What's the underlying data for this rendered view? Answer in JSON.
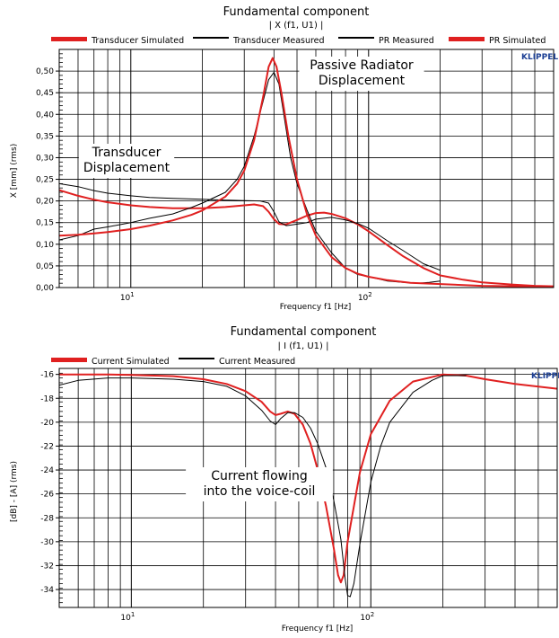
{
  "brand": "KLIPPEL",
  "chart_data": [
    {
      "type": "line",
      "title": "Fundamental component",
      "subtitle": "| X (f1, U1) |",
      "xlabel": "Frequency f1  [Hz]",
      "ylabel": "X  [mm]  (rms)",
      "xscale": "log",
      "xlim": [
        5,
        600
      ],
      "ylim": [
        0,
        0.55
      ],
      "xticks": [
        {
          "v": 10,
          "base": "10",
          "exp": "1"
        },
        {
          "v": 100,
          "base": "10",
          "exp": "2"
        }
      ],
      "yticks": [
        "0,00",
        "0,05",
        "0,10",
        "0,15",
        "0,20",
        "0,25",
        "0,30",
        "0,35",
        "0,40",
        "0,45",
        "0,50"
      ],
      "grid": true,
      "legend_position": "top",
      "legend": [
        {
          "label": "Transducer Simulated",
          "color": "#e02020"
        },
        {
          "label": "Transducer Measured",
          "color": "#000000"
        },
        {
          "label": "PR Measured",
          "color": "#000000"
        },
        {
          "label": "PR Simulated",
          "color": "#e02020"
        }
      ],
      "annotations": [
        {
          "lines": [
            "Passive Radiator",
            "Displacement"
          ],
          "x": 60,
          "y": 0.475
        },
        {
          "lines": [
            "Transducer",
            "Displacement"
          ],
          "x": 9.5,
          "y": 0.275
        }
      ],
      "series": [
        {
          "name": "Transducer Simulated",
          "color": "#e02020",
          "width": 2,
          "points": [
            [
              5,
              0.225
            ],
            [
              6,
              0.212
            ],
            [
              7,
              0.203
            ],
            [
              8,
              0.197
            ],
            [
              10,
              0.19
            ],
            [
              12,
              0.186
            ],
            [
              15,
              0.183
            ],
            [
              20,
              0.183
            ],
            [
              25,
              0.186
            ],
            [
              30,
              0.19
            ],
            [
              33,
              0.192
            ],
            [
              36,
              0.188
            ],
            [
              38,
              0.175
            ],
            [
              40,
              0.158
            ],
            [
              42,
              0.147
            ],
            [
              45,
              0.146
            ],
            [
              50,
              0.156
            ],
            [
              55,
              0.166
            ],
            [
              60,
              0.172
            ],
            [
              65,
              0.173
            ],
            [
              70,
              0.17
            ],
            [
              80,
              0.16
            ],
            [
              90,
              0.146
            ],
            [
              100,
              0.13
            ],
            [
              120,
              0.098
            ],
            [
              140,
              0.072
            ],
            [
              170,
              0.045
            ],
            [
              200,
              0.028
            ],
            [
              250,
              0.018
            ],
            [
              300,
              0.012
            ],
            [
              400,
              0.007
            ],
            [
              500,
              0.004
            ],
            [
              600,
              0.003
            ]
          ]
        },
        {
          "name": "Transducer Measured",
          "color": "#000000",
          "width": 1,
          "points": [
            [
              5,
              0.24
            ],
            [
              6,
              0.233
            ],
            [
              7,
              0.224
            ],
            [
              8,
              0.218
            ],
            [
              10,
              0.212
            ],
            [
              12,
              0.208
            ],
            [
              15,
              0.206
            ],
            [
              20,
              0.204
            ],
            [
              25,
              0.202
            ],
            [
              30,
              0.201
            ],
            [
              35,
              0.2
            ],
            [
              38,
              0.195
            ],
            [
              40,
              0.175
            ],
            [
              42,
              0.152
            ],
            [
              45,
              0.143
            ],
            [
              48,
              0.145
            ],
            [
              52,
              0.148
            ],
            [
              55,
              0.15
            ],
            [
              60,
              0.158
            ],
            [
              70,
              0.162
            ],
            [
              80,
              0.156
            ],
            [
              90,
              0.148
            ],
            [
              100,
              0.137
            ],
            [
              120,
              0.108
            ],
            [
              140,
              0.085
            ],
            [
              170,
              0.055
            ],
            [
              200,
              0.04
            ]
          ]
        },
        {
          "name": "PR Measured",
          "color": "#000000",
          "width": 1,
          "points": [
            [
              5,
              0.11
            ],
            [
              6,
              0.12
            ],
            [
              7,
              0.135
            ],
            [
              8,
              0.14
            ],
            [
              10,
              0.15
            ],
            [
              12,
              0.16
            ],
            [
              15,
              0.17
            ],
            [
              18,
              0.185
            ],
            [
              20,
              0.195
            ],
            [
              25,
              0.22
            ],
            [
              28,
              0.25
            ],
            [
              30,
              0.28
            ],
            [
              33,
              0.35
            ],
            [
              36,
              0.43
            ],
            [
              38,
              0.48
            ],
            [
              40,
              0.497
            ],
            [
              42,
              0.47
            ],
            [
              44,
              0.4
            ],
            [
              47,
              0.3
            ],
            [
              50,
              0.24
            ],
            [
              55,
              0.18
            ],
            [
              60,
              0.13
            ],
            [
              70,
              0.08
            ],
            [
              80,
              0.045
            ],
            [
              90,
              0.03
            ],
            [
              100,
              0.025
            ],
            [
              110,
              0.02
            ],
            [
              120,
              0.015
            ],
            [
              140,
              0.012
            ],
            [
              160,
              0.01
            ],
            [
              180,
              0.012
            ],
            [
              200,
              0.015
            ]
          ]
        },
        {
          "name": "PR Simulated",
          "color": "#e02020",
          "width": 2,
          "points": [
            [
              5,
              0.12
            ],
            [
              6,
              0.122
            ],
            [
              7,
              0.125
            ],
            [
              8,
              0.128
            ],
            [
              10,
              0.135
            ],
            [
              12,
              0.143
            ],
            [
              15,
              0.155
            ],
            [
              18,
              0.168
            ],
            [
              20,
              0.178
            ],
            [
              25,
              0.21
            ],
            [
              28,
              0.24
            ],
            [
              30,
              0.27
            ],
            [
              33,
              0.34
            ],
            [
              36,
              0.44
            ],
            [
              38,
              0.51
            ],
            [
              39.5,
              0.53
            ],
            [
              41,
              0.51
            ],
            [
              43,
              0.45
            ],
            [
              46,
              0.35
            ],
            [
              50,
              0.25
            ],
            [
              55,
              0.17
            ],
            [
              60,
              0.12
            ],
            [
              70,
              0.07
            ],
            [
              80,
              0.045
            ],
            [
              90,
              0.032
            ],
            [
              100,
              0.025
            ],
            [
              120,
              0.017
            ],
            [
              150,
              0.011
            ],
            [
              200,
              0.008
            ],
            [
              300,
              0.004
            ],
            [
              600,
              0.002
            ]
          ]
        }
      ]
    },
    {
      "type": "line",
      "title": "Fundamental component",
      "subtitle": "| I (f1, U1) |",
      "xlabel": "Frequency f1  [Hz]",
      "ylabel": "[dB] - [A]  (rms)",
      "xscale": "log",
      "xlim": [
        5,
        600
      ],
      "ylim": [
        -35.5,
        -15.5
      ],
      "xticks": [
        {
          "v": 10,
          "base": "10",
          "exp": "1"
        },
        {
          "v": 100,
          "base": "10",
          "exp": "2"
        }
      ],
      "yticks": [
        "-16",
        "-18",
        "-20",
        "-22",
        "-24",
        "-26",
        "-28",
        "-30",
        "-32",
        "-34"
      ],
      "grid": true,
      "legend_position": "top",
      "legend": [
        {
          "label": "Current Simulated",
          "color": "#e02020"
        },
        {
          "label": "Current Measured",
          "color": "#000000"
        }
      ],
      "annotations": [
        {
          "lines": [
            "Current flowing",
            "into the voice-coil"
          ],
          "x": 24,
          "y": -25
        }
      ],
      "series": [
        {
          "name": "Current Simulated",
          "color": "#e02020",
          "width": 2,
          "points": [
            [
              5,
              -16.0
            ],
            [
              8,
              -16.0
            ],
            [
              10,
              -16.05
            ],
            [
              15,
              -16.15
            ],
            [
              20,
              -16.4
            ],
            [
              25,
              -16.8
            ],
            [
              30,
              -17.4
            ],
            [
              35,
              -18.3
            ],
            [
              38,
              -19.1
            ],
            [
              40,
              -19.4
            ],
            [
              42,
              -19.3
            ],
            [
              45,
              -19.1
            ],
            [
              48,
              -19.3
            ],
            [
              52,
              -20.2
            ],
            [
              56,
              -21.8
            ],
            [
              60,
              -24.0
            ],
            [
              65,
              -27.0
            ],
            [
              70,
              -30.5
            ],
            [
              73,
              -32.8
            ],
            [
              75,
              -33.4
            ],
            [
              77,
              -32.8
            ],
            [
              80,
              -30.0
            ],
            [
              90,
              -24.2
            ],
            [
              100,
              -21.0
            ],
            [
              120,
              -18.2
            ],
            [
              150,
              -16.6
            ],
            [
              200,
              -16.0
            ],
            [
              250,
              -16.1
            ],
            [
              300,
              -16.4
            ],
            [
              400,
              -16.8
            ],
            [
              600,
              -17.2
            ]
          ]
        },
        {
          "name": "Current Measured",
          "color": "#000000",
          "width": 1,
          "points": [
            [
              5,
              -16.9
            ],
            [
              6,
              -16.5
            ],
            [
              8,
              -16.3
            ],
            [
              10,
              -16.3
            ],
            [
              15,
              -16.4
            ],
            [
              20,
              -16.6
            ],
            [
              25,
              -17.0
            ],
            [
              30,
              -17.8
            ],
            [
              35,
              -19.0
            ],
            [
              38,
              -19.9
            ],
            [
              40,
              -20.2
            ],
            [
              42,
              -19.7
            ],
            [
              45,
              -19.2
            ],
            [
              48,
              -19.2
            ],
            [
              52,
              -19.6
            ],
            [
              56,
              -20.5
            ],
            [
              60,
              -21.8
            ],
            [
              65,
              -23.8
            ],
            [
              70,
              -26.5
            ],
            [
              75,
              -29.8
            ],
            [
              78,
              -33.0
            ],
            [
              80,
              -34.5
            ],
            [
              82,
              -34.6
            ],
            [
              85,
              -33.5
            ],
            [
              90,
              -30.2
            ],
            [
              100,
              -25.0
            ],
            [
              110,
              -22.0
            ],
            [
              120,
              -20.0
            ],
            [
              150,
              -17.5
            ],
            [
              180,
              -16.5
            ],
            [
              200,
              -16.1
            ],
            [
              250,
              -16.1
            ]
          ]
        }
      ]
    }
  ]
}
